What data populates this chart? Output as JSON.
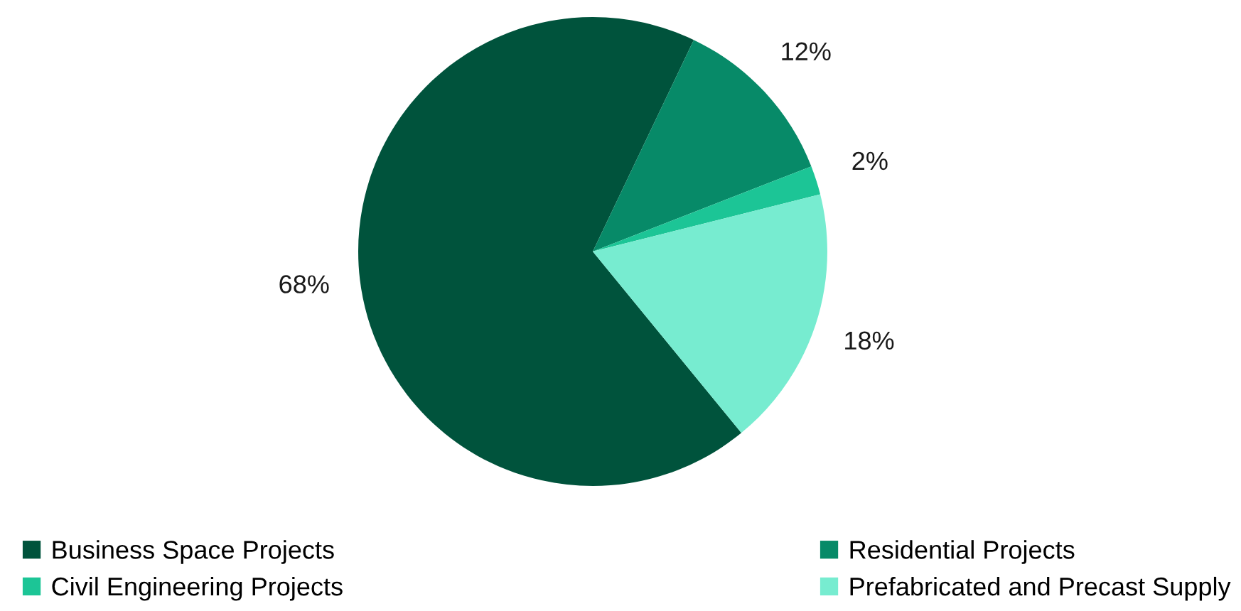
{
  "chart_data": {
    "type": "pie",
    "categories": [
      "Business Space Projects",
      "Residential Projects",
      "Civil Engineering Projects",
      "Prefabricated and Precast Supply"
    ],
    "values": [
      68,
      12,
      2,
      18
    ],
    "value_labels": [
      "68%",
      "12%",
      "2%",
      "18%"
    ],
    "colors": [
      "#00533c",
      "#078a68",
      "#1cc596",
      "#77ecd0"
    ],
    "legend": "bottom"
  }
}
